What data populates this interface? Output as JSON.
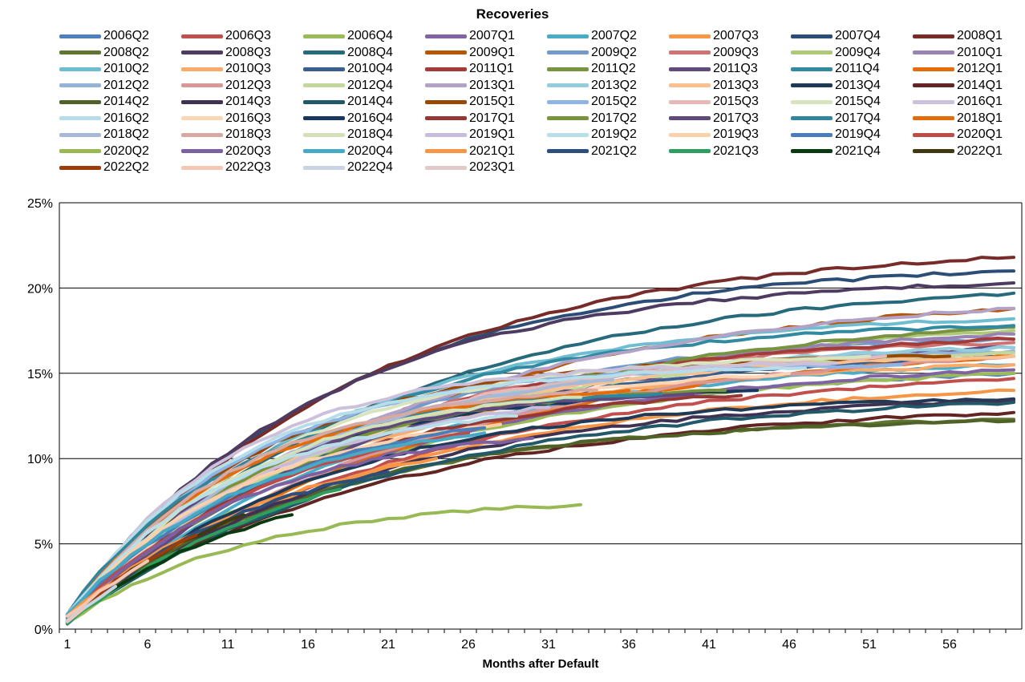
{
  "chart_data": {
    "type": "line",
    "title": "Recoveries",
    "xlabel": "Months after Default",
    "ylabel": "",
    "xlim": [
      1,
      60
    ],
    "ylim": [
      0,
      0.25
    ],
    "x_ticks": [
      1,
      6,
      11,
      16,
      21,
      26,
      31,
      36,
      41,
      46,
      51,
      56
    ],
    "y_ticks": [
      0,
      0.05,
      0.1,
      0.15,
      0.2,
      0.25
    ],
    "y_tick_labels": [
      "0%",
      "5%",
      "10%",
      "15%",
      "20%",
      "25%"
    ],
    "grid": "horizontal",
    "legend_position": "top",
    "series": [
      {
        "name": "2006Q2",
        "color": "#4f81bd",
        "len": 60,
        "end": 0.15
      },
      {
        "name": "2006Q3",
        "color": "#c0504d",
        "len": 60,
        "end": 0.147
      },
      {
        "name": "2006Q4",
        "color": "#9bbb59",
        "len": 60,
        "end": 0.15
      },
      {
        "name": "2007Q1",
        "color": "#8064a2",
        "len": 60,
        "end": 0.152
      },
      {
        "name": "2007Q2",
        "color": "#4bacc6",
        "len": 60,
        "end": 0.155
      },
      {
        "name": "2007Q3",
        "color": "#f79646",
        "len": 60,
        "end": 0.14
      },
      {
        "name": "2007Q4",
        "color": "#2c4d75",
        "len": 60,
        "end": 0.21
      },
      {
        "name": "2008Q1",
        "color": "#772c2a",
        "len": 60,
        "end": 0.218
      },
      {
        "name": "2008Q2",
        "color": "#5f7530",
        "len": 60,
        "end": 0.123
      },
      {
        "name": "2008Q3",
        "color": "#4d3b62",
        "len": 60,
        "end": 0.203
      },
      {
        "name": "2008Q4",
        "color": "#276a7c",
        "len": 60,
        "end": 0.197
      },
      {
        "name": "2009Q1",
        "color": "#b65708",
        "len": 60,
        "end": 0.188
      },
      {
        "name": "2009Q2",
        "color": "#729aca",
        "len": 60,
        "end": 0.17
      },
      {
        "name": "2009Q3",
        "color": "#cd7371",
        "len": 60,
        "end": 0.168
      },
      {
        "name": "2009Q4",
        "color": "#afc97a",
        "len": 60,
        "end": 0.175
      },
      {
        "name": "2010Q1",
        "color": "#9983b5",
        "len": 60,
        "end": 0.173
      },
      {
        "name": "2010Q2",
        "color": "#6fbdd1",
        "len": 60,
        "end": 0.182
      },
      {
        "name": "2010Q3",
        "color": "#f9ab6b",
        "len": 60,
        "end": 0.155
      },
      {
        "name": "2010Q4",
        "color": "#3a5f8e",
        "len": 60,
        "end": 0.16
      },
      {
        "name": "2011Q1",
        "color": "#a33c39",
        "len": 60,
        "end": 0.17
      },
      {
        "name": "2011Q2",
        "color": "#789440",
        "len": 60,
        "end": 0.177
      },
      {
        "name": "2011Q3",
        "color": "#614a7e",
        "len": 60,
        "end": 0.165
      },
      {
        "name": "2011Q4",
        "color": "#328aa1",
        "len": 60,
        "end": 0.178
      },
      {
        "name": "2012Q1",
        "color": "#e46c0a",
        "len": 60,
        "end": 0.16
      },
      {
        "name": "2012Q2",
        "color": "#95b3d7",
        "len": 60,
        "end": 0.163
      },
      {
        "name": "2012Q3",
        "color": "#d99795",
        "len": 60,
        "end": 0.16
      },
      {
        "name": "2012Q4",
        "color": "#c3d69b",
        "len": 60,
        "end": 0.162
      },
      {
        "name": "2013Q1",
        "color": "#b3a2c7",
        "len": 60,
        "end": 0.188
      },
      {
        "name": "2013Q2",
        "color": "#93cddd",
        "len": 60,
        "end": 0.165
      },
      {
        "name": "2013Q3",
        "color": "#fac090",
        "len": 60,
        "end": 0.16
      },
      {
        "name": "2013Q4",
        "color": "#1f3a57",
        "len": 60,
        "end": 0.135
      },
      {
        "name": "2014Q1",
        "color": "#632523",
        "len": 60,
        "end": 0.127
      },
      {
        "name": "2014Q2",
        "color": "#4f6228",
        "len": 60,
        "end": 0.122
      },
      {
        "name": "2014Q3",
        "color": "#3f3151",
        "len": 60,
        "end": 0.134
      },
      {
        "name": "2014Q4",
        "color": "#215968",
        "len": 60,
        "end": 0.133
      },
      {
        "name": "2015Q1",
        "color": "#974806",
        "len": 56,
        "end": 0.16
      },
      {
        "name": "2015Q2",
        "color": "#8eb4e3",
        "len": 53,
        "end": 0.155
      },
      {
        "name": "2015Q3",
        "color": "#e6b9b8",
        "len": 52,
        "end": 0.16
      },
      {
        "name": "2015Q4",
        "color": "#d7e4bd",
        "len": 51,
        "end": 0.16
      },
      {
        "name": "2016Q1",
        "color": "#ccc1da",
        "len": 49,
        "end": 0.156
      },
      {
        "name": "2016Q2",
        "color": "#b7dee8",
        "len": 47,
        "end": 0.153
      },
      {
        "name": "2016Q3",
        "color": "#fcd5b5",
        "len": 46,
        "end": 0.15
      },
      {
        "name": "2016Q4",
        "color": "#17375e",
        "len": 44,
        "end": 0.14
      },
      {
        "name": "2017Q1",
        "color": "#953735",
        "len": 43,
        "end": 0.137
      },
      {
        "name": "2017Q2",
        "color": "#77933c",
        "len": 42,
        "end": 0.14
      },
      {
        "name": "2017Q3",
        "color": "#604a7b",
        "len": 40,
        "end": 0.138
      },
      {
        "name": "2017Q4",
        "color": "#31859c",
        "len": 38,
        "end": 0.138
      },
      {
        "name": "2018Q1",
        "color": "#e36c09",
        "len": 36,
        "end": 0.14
      },
      {
        "name": "2018Q2",
        "color": "#a6b9d6",
        "len": 35,
        "end": 0.146
      },
      {
        "name": "2018Q3",
        "color": "#d8a9a3",
        "len": 34,
        "end": 0.14
      },
      {
        "name": "2018Q4",
        "color": "#d4e0b8",
        "len": 33,
        "end": 0.136
      },
      {
        "name": "2019Q1",
        "color": "#c6bddc",
        "len": 31,
        "end": 0.13
      },
      {
        "name": "2019Q2",
        "color": "#b8dfe9",
        "len": 29,
        "end": 0.125
      },
      {
        "name": "2019Q3",
        "color": "#fbd0aa",
        "len": 28,
        "end": 0.12
      },
      {
        "name": "2019Q4",
        "color": "#4a7ebb",
        "len": 27,
        "end": 0.118
      },
      {
        "name": "2020Q1",
        "color": "#be4b48",
        "len": 26,
        "end": 0.115
      },
      {
        "name": "2020Q2",
        "color": "#98b954",
        "len": 33,
        "end": 0.073
      },
      {
        "name": "2020Q3",
        "color": "#7d60a0",
        "len": 30,
        "end": 0.112
      },
      {
        "name": "2020Q4",
        "color": "#46aac5",
        "len": 27,
        "end": 0.115
      },
      {
        "name": "2021Q1",
        "color": "#f79646",
        "len": 24,
        "end": 0.1
      },
      {
        "name": "2021Q2",
        "color": "#2c4f7c",
        "len": 21,
        "end": 0.092
      },
      {
        "name": "2021Q3",
        "color": "#2e9e5e",
        "len": 18,
        "end": 0.082
      },
      {
        "name": "2021Q4",
        "color": "#0a3a10",
        "len": 15,
        "end": 0.067
      },
      {
        "name": "2022Q1",
        "color": "#403810",
        "len": 12,
        "end": 0.067
      },
      {
        "name": "2022Q2",
        "color": "#9c3c0a",
        "len": 9,
        "end": 0.055
      },
      {
        "name": "2022Q3",
        "color": "#f6c8b4",
        "len": 6,
        "end": 0.04
      },
      {
        "name": "2022Q4",
        "color": "#c8d4e4",
        "len": 4,
        "end": 0.025
      },
      {
        "name": "2023Q1",
        "color": "#e0c9c6",
        "len": 2,
        "end": 0.012
      }
    ]
  }
}
